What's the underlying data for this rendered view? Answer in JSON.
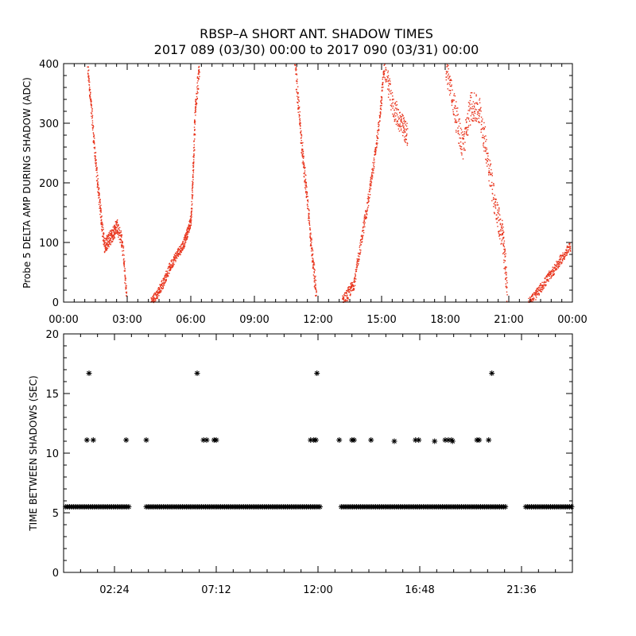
{
  "title_line1": "RBSP–A SHORT ANT. SHADOW TIMES",
  "title_line2": "2017 089 (03/30) 00:00 to 2017 090 (03/31) 00:00",
  "colors": {
    "scatter_top": "#e8341c",
    "scatter_bottom": "#000000",
    "axes": "#000000",
    "background": "#ffffff"
  },
  "chart_data": [
    {
      "type": "scatter",
      "ylabel": "Probe 5 DELTA AMP DURING SHADOW (ADC)",
      "xlabel": "",
      "x_unit": "hours",
      "xlim": [
        0,
        24
      ],
      "ylim": [
        0,
        400
      ],
      "x_ticks": [
        0,
        3,
        6,
        9,
        12,
        15,
        18,
        21,
        24
      ],
      "x_tick_labels": [
        "00:00",
        "03:00",
        "06:00",
        "09:00",
        "12:00",
        "15:00",
        "18:00",
        "21:00",
        "00:00"
      ],
      "y_ticks": [
        0,
        100,
        200,
        300,
        400
      ],
      "y_tick_labels": [
        "0",
        "100",
        "200",
        "300",
        "400"
      ],
      "grid": false,
      "marker": "dot",
      "segments": [
        {
          "x": [
            1.1,
            1.3,
            1.5,
            1.7,
            1.9,
            2.1,
            2.3,
            2.5,
            2.75,
            2.95
          ],
          "y": [
            400,
            320,
            230,
            160,
            95,
            105,
            115,
            130,
            100,
            10
          ],
          "spread": 12
        },
        {
          "x": [
            4.1,
            4.4,
            4.7,
            5.0,
            5.3,
            5.6,
            5.8,
            6.0
          ],
          "y": [
            0,
            15,
            35,
            60,
            80,
            95,
            115,
            140
          ],
          "spread": 8
        },
        {
          "x": [
            6.0,
            6.1,
            6.2,
            6.4
          ],
          "y": [
            140,
            230,
            330,
            400
          ],
          "spread": 15
        },
        {
          "x": [
            10.9,
            11.1,
            11.3,
            11.5,
            11.7,
            11.9
          ],
          "y": [
            400,
            310,
            230,
            160,
            80,
            10
          ],
          "spread": 15
        },
        {
          "x": [
            13.1,
            13.4,
            13.7,
            14.0,
            14.3,
            14.6,
            14.9,
            15.1
          ],
          "y": [
            0,
            15,
            35,
            100,
            160,
            230,
            310,
            400
          ],
          "spread": 10
        },
        {
          "x": [
            15.1,
            15.5,
            15.9,
            16.2
          ],
          "y": [
            400,
            330,
            300,
            280
          ],
          "spread": 20
        },
        {
          "x": [
            18.0,
            18.4,
            18.8,
            19.2,
            19.6,
            20.0,
            20.4,
            20.7,
            20.9
          ],
          "y": [
            400,
            330,
            260,
            330,
            320,
            240,
            150,
            110,
            20
          ],
          "spread": 25
        },
        {
          "x": [
            21.9,
            22.3,
            22.7,
            23.1,
            23.5,
            23.9
          ],
          "y": [
            0,
            15,
            35,
            55,
            75,
            95
          ],
          "spread": 8
        }
      ]
    },
    {
      "type": "scatter",
      "ylabel": "TIME BETWEEN SHADOWS (SEC)",
      "xlabel": "",
      "x_unit": "hours",
      "xlim": [
        0,
        24
      ],
      "ylim": [
        0,
        20
      ],
      "x_ticks": [
        2.4,
        7.2,
        12.0,
        16.8,
        21.6
      ],
      "x_tick_labels": [
        "02:24",
        "07:12",
        "12:00",
        "16:48",
        "21:36"
      ],
      "y_ticks": [
        0,
        5,
        10,
        15,
        20
      ],
      "y_tick_labels": [
        "0",
        "5",
        "10",
        "15",
        "20"
      ],
      "grid": false,
      "marker": "asterisk",
      "baseline_value": 5.5,
      "baseline_ranges": [
        [
          0.1,
          3.1
        ],
        [
          3.9,
          12.1
        ],
        [
          13.1,
          20.9
        ],
        [
          21.8,
          24.0
        ]
      ],
      "points": [
        {
          "x": 1.2,
          "y": 16.7
        },
        {
          "x": 1.1,
          "y": 11.1
        },
        {
          "x": 1.4,
          "y": 11.1
        },
        {
          "x": 2.95,
          "y": 11.1
        },
        {
          "x": 3.9,
          "y": 11.1
        },
        {
          "x": 6.3,
          "y": 16.7
        },
        {
          "x": 6.6,
          "y": 11.1
        },
        {
          "x": 6.75,
          "y": 11.1
        },
        {
          "x": 7.1,
          "y": 11.1
        },
        {
          "x": 7.2,
          "y": 11.1
        },
        {
          "x": 11.65,
          "y": 11.1
        },
        {
          "x": 11.8,
          "y": 11.1
        },
        {
          "x": 11.9,
          "y": 11.1
        },
        {
          "x": 11.95,
          "y": 16.7
        },
        {
          "x": 13.0,
          "y": 11.1
        },
        {
          "x": 13.6,
          "y": 11.1
        },
        {
          "x": 13.7,
          "y": 11.1
        },
        {
          "x": 14.5,
          "y": 11.1
        },
        {
          "x": 15.6,
          "y": 11.0
        },
        {
          "x": 16.6,
          "y": 11.1
        },
        {
          "x": 16.75,
          "y": 11.1
        },
        {
          "x": 17.5,
          "y": 11.0
        },
        {
          "x": 18.0,
          "y": 11.1
        },
        {
          "x": 18.15,
          "y": 11.1
        },
        {
          "x": 18.3,
          "y": 11.1
        },
        {
          "x": 18.35,
          "y": 11.0
        },
        {
          "x": 19.5,
          "y": 11.1
        },
        {
          "x": 19.6,
          "y": 11.1
        },
        {
          "x": 20.05,
          "y": 11.1
        },
        {
          "x": 20.2,
          "y": 16.7
        }
      ]
    }
  ]
}
